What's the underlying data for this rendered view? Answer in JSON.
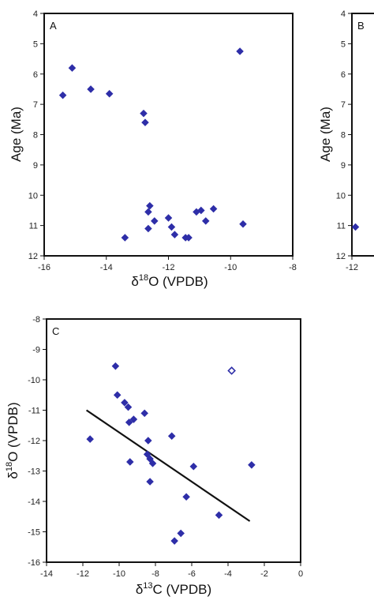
{
  "colors": {
    "marker": "#2e2ea8",
    "axis": "#111111",
    "trend": "#111111"
  },
  "chart_data": [
    {
      "type": "scatter",
      "panel_label": "A",
      "xlabel_greek": "δ",
      "xlabel_sup": "18",
      "xlabel_rest": "O (VPDB)",
      "ylabel": "Age (Ma)",
      "xlim": [
        -16,
        -8
      ],
      "ylim": [
        12,
        4
      ],
      "y_inverted": true,
      "xticks": [
        "-16",
        "-14",
        "-12",
        "-10",
        "-8"
      ],
      "yticks": [
        "4",
        "5",
        "6",
        "7",
        "8",
        "9",
        "10",
        "11",
        "12"
      ],
      "series": [
        {
          "marker": "filled-diamond",
          "points": [
            {
              "x": -15.1,
              "y": 5.8
            },
            {
              "x": -15.4,
              "y": 6.7
            },
            {
              "x": -14.5,
              "y": 6.5
            },
            {
              "x": -13.9,
              "y": 6.65
            },
            {
              "x": -9.7,
              "y": 5.25
            },
            {
              "x": -12.8,
              "y": 7.3
            },
            {
              "x": -12.75,
              "y": 7.6
            },
            {
              "x": -12.6,
              "y": 10.35
            },
            {
              "x": -12.65,
              "y": 10.55
            },
            {
              "x": -12.45,
              "y": 10.85
            },
            {
              "x": -12.65,
              "y": 11.1
            },
            {
              "x": -13.4,
              "y": 11.4
            },
            {
              "x": -12.0,
              "y": 10.75
            },
            {
              "x": -11.9,
              "y": 11.05
            },
            {
              "x": -11.8,
              "y": 11.3
            },
            {
              "x": -11.45,
              "y": 11.4
            },
            {
              "x": -11.35,
              "y": 11.4
            },
            {
              "x": -11.1,
              "y": 10.55
            },
            {
              "x": -10.95,
              "y": 10.5
            },
            {
              "x": -10.8,
              "y": 10.85
            },
            {
              "x": -10.55,
              "y": 10.45
            },
            {
              "x": -9.6,
              "y": 10.95
            }
          ]
        }
      ]
    },
    {
      "type": "scatter",
      "panel_label": "B",
      "ylabel": "Age (Ma)",
      "xlim": [
        -12,
        -8
      ],
      "ylim": [
        12,
        4
      ],
      "y_inverted": true,
      "xticks": [
        "-12"
      ],
      "yticks": [
        "4",
        "5",
        "6",
        "7",
        "8",
        "9",
        "10",
        "11",
        "12"
      ],
      "series": [
        {
          "marker": "filled-diamond",
          "points": [
            {
              "x": -11.7,
              "y": 11.05
            }
          ]
        }
      ]
    },
    {
      "type": "scatter",
      "panel_label": "C",
      "xlabel_greek": "δ",
      "xlabel_sup": "13",
      "xlabel_rest": "C (VPDB)",
      "ylabel_greek": "δ",
      "ylabel_sup": "18",
      "ylabel_rest": "O (VPDB)",
      "xlim": [
        -14,
        0
      ],
      "ylim": [
        -16,
        -8
      ],
      "xticks": [
        "-14",
        "-12",
        "-10",
        "-8",
        "-6",
        "-4",
        "-2",
        "0"
      ],
      "yticks": [
        "-8",
        "-9",
        "-10",
        "-11",
        "-12",
        "-13",
        "-14",
        "-15",
        "-16"
      ],
      "series": [
        {
          "marker": "filled-diamond",
          "points": [
            {
              "x": -10.2,
              "y": -9.55
            },
            {
              "x": -10.1,
              "y": -10.5
            },
            {
              "x": -9.7,
              "y": -10.75
            },
            {
              "x": -9.5,
              "y": -10.9
            },
            {
              "x": -8.6,
              "y": -11.1
            },
            {
              "x": -9.2,
              "y": -11.3
            },
            {
              "x": -9.45,
              "y": -11.4
            },
            {
              "x": -11.6,
              "y": -11.95
            },
            {
              "x": -8.4,
              "y": -12.0
            },
            {
              "x": -7.1,
              "y": -11.85
            },
            {
              "x": -9.4,
              "y": -12.7
            },
            {
              "x": -8.45,
              "y": -12.45
            },
            {
              "x": -8.3,
              "y": -12.6
            },
            {
              "x": -8.15,
              "y": -12.75
            },
            {
              "x": -8.3,
              "y": -13.35
            },
            {
              "x": -5.9,
              "y": -12.85
            },
            {
              "x": -2.7,
              "y": -12.8
            },
            {
              "x": -6.3,
              "y": -13.85
            },
            {
              "x": -4.5,
              "y": -14.45
            },
            {
              "x": -6.6,
              "y": -15.05
            },
            {
              "x": -6.95,
              "y": -15.3
            }
          ]
        },
        {
          "marker": "open-diamond",
          "points": [
            {
              "x": -3.8,
              "y": -9.7
            }
          ]
        }
      ],
      "trendline": {
        "x": [
          -11.8,
          -2.8
        ],
        "y": [
          -11.0,
          -14.65
        ]
      }
    }
  ]
}
